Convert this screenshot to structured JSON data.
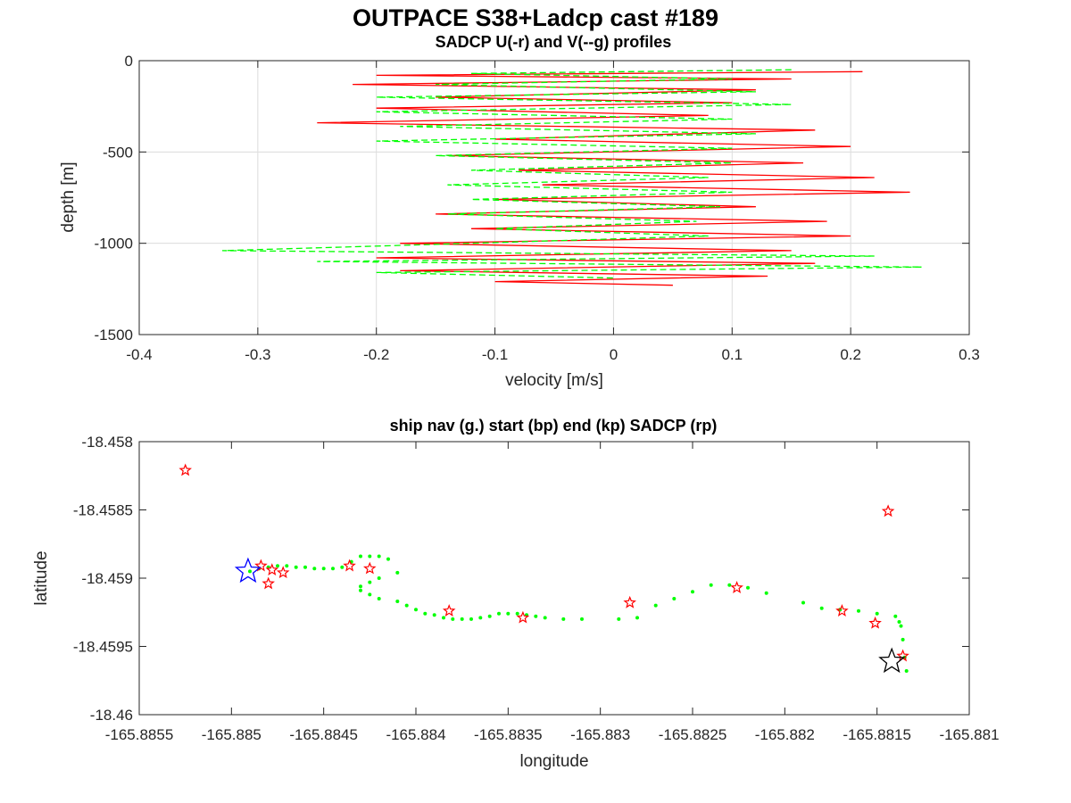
{
  "figure": {
    "title": "OUTPACE S38+Ladcp cast #189"
  },
  "chart_data": [
    {
      "type": "line",
      "title": "SADCP U(-r) and V(--g) profiles",
      "xlabel": "velocity [m/s]",
      "ylabel": "depth [m]",
      "xlim": [
        -0.4,
        0.3
      ],
      "ylim": [
        -1500,
        0
      ],
      "xticks": [
        -0.4,
        -0.3,
        -0.2,
        -0.1,
        0,
        0.1,
        0.2,
        0.3
      ],
      "xtick_labels": [
        "-0.4",
        "-0.3",
        "-0.2",
        "-0.1",
        "0",
        "0.1",
        "0.2",
        "0.3"
      ],
      "yticks": [
        -1500,
        -1000,
        -500,
        0
      ],
      "ytick_labels": [
        "-1500",
        "-1000",
        "-500",
        "0"
      ],
      "grid": true,
      "series": [
        {
          "style": "solid",
          "color": "#ff0000",
          "depth": [
            -60,
            -80,
            -100,
            -130,
            -160,
            -200,
            -230,
            -260,
            -300,
            -340,
            -380,
            -430,
            -470,
            -520,
            -560,
            -600,
            -640,
            -680,
            -720,
            -760,
            -800,
            -840,
            -880,
            -920,
            -960,
            -1000,
            -1040,
            -1080,
            -1110,
            -1150,
            -1180,
            -1210,
            -1230
          ],
          "values": [
            0.21,
            -0.2,
            0.15,
            -0.22,
            0.12,
            -0.15,
            0.1,
            -0.2,
            0.08,
            -0.25,
            0.17,
            -0.1,
            0.2,
            -0.14,
            0.16,
            -0.08,
            0.22,
            -0.06,
            0.25,
            -0.1,
            0.12,
            -0.15,
            0.18,
            -0.12,
            0.2,
            -0.18,
            0.15,
            -0.2,
            0.17,
            -0.18,
            0.13,
            -0.1,
            0.05
          ]
        },
        {
          "style": "dashed",
          "color": "#00ff00",
          "depth": [
            -50,
            -70,
            -100,
            -130,
            -170,
            -200,
            -240,
            -280,
            -320,
            -360,
            -400,
            -440,
            -480,
            -520,
            -560,
            -600,
            -640,
            -680,
            -720,
            -760,
            -800,
            -840,
            -880,
            -920,
            -960,
            -1000,
            -1040,
            -1070,
            -1100,
            -1130,
            -1160,
            -1190
          ],
          "values": [
            0.15,
            -0.12,
            0.1,
            -0.15,
            0.12,
            -0.2,
            0.15,
            -0.2,
            0.1,
            -0.18,
            0.12,
            -0.2,
            0.1,
            -0.15,
            0.1,
            -0.12,
            0.08,
            -0.14,
            0.1,
            -0.12,
            0.09,
            -0.14,
            0.07,
            -0.1,
            0.08,
            -0.12,
            -0.33,
            0.22,
            -0.25,
            0.26,
            -0.2,
            0.0
          ]
        }
      ]
    },
    {
      "type": "scatter",
      "title": "ship nav (g.) start (bp) end (kp) SADCP (rp)",
      "xlabel": "longitude",
      "ylabel": "latitude",
      "xlim": [
        -165.8855,
        -165.881
      ],
      "ylim": [
        -18.46,
        -18.458
      ],
      "xticks": [
        -165.8855,
        -165.885,
        -165.8845,
        -165.884,
        -165.8835,
        -165.883,
        -165.8825,
        -165.882,
        -165.8815,
        -165.881
      ],
      "xtick_labels": [
        "-165.8855",
        "-165.885",
        "-165.8845",
        "-165.884",
        "-165.8835",
        "-165.883",
        "-165.8825",
        "-165.882",
        "-165.8815",
        "-165.881"
      ],
      "yticks": [
        -18.46,
        -18.4595,
        -18.459,
        -18.4585,
        -18.458
      ],
      "ytick_labels": [
        "-18.46",
        "-18.4595",
        "-18.459",
        "-18.4585",
        "-18.458"
      ],
      "grid": false,
      "ship_nav": {
        "color": "#00ff00",
        "lon": [
          -165.8849,
          -165.88485,
          -165.8848,
          -165.88475,
          -165.8847,
          -165.88465,
          -165.8846,
          -165.88455,
          -165.8845,
          -165.88445,
          -165.8844,
          -165.88435,
          -165.8843,
          -165.88425,
          -165.8842,
          -165.88415,
          -165.8841,
          -165.8842,
          -165.88425,
          -165.8843,
          -165.8843,
          -165.88425,
          -165.8842,
          -165.8841,
          -165.88405,
          -165.884,
          -165.88395,
          -165.8839,
          -165.88385,
          -165.8838,
          -165.88375,
          -165.8837,
          -165.88365,
          -165.8836,
          -165.88355,
          -165.8835,
          -165.88345,
          -165.8834,
          -165.88335,
          -165.8833,
          -165.8832,
          -165.8831,
          -165.8829,
          -165.8828,
          -165.8827,
          -165.8826,
          -165.8825,
          -165.8824,
          -165.8823,
          -165.8822,
          -165.8821,
          -165.8819,
          -165.8818,
          -165.8817,
          -165.8816,
          -165.8815,
          -165.8814,
          -165.88138,
          -165.88137,
          -165.88136,
          -165.88135,
          -165.88134
        ],
        "lat": [
          -18.45895,
          -18.45893,
          -18.45892,
          -18.45891,
          -18.45891,
          -18.45892,
          -18.45892,
          -18.45893,
          -18.45893,
          -18.45893,
          -18.45892,
          -18.45888,
          -18.45884,
          -18.45884,
          -18.45884,
          -18.45886,
          -18.45896,
          -18.459,
          -18.45903,
          -18.45906,
          -18.45909,
          -18.45912,
          -18.45915,
          -18.45917,
          -18.4592,
          -18.45923,
          -18.45926,
          -18.45927,
          -18.45929,
          -18.4593,
          -18.4593,
          -18.4593,
          -18.45929,
          -18.45928,
          -18.45926,
          -18.45926,
          -18.45926,
          -18.45927,
          -18.45928,
          -18.45929,
          -18.4593,
          -18.4593,
          -18.4593,
          -18.45929,
          -18.4592,
          -18.45915,
          -18.4591,
          -18.45905,
          -18.45905,
          -18.45907,
          -18.45911,
          -18.45918,
          -18.45922,
          -18.45923,
          -18.45924,
          -18.45926,
          -18.45928,
          -18.45932,
          -18.45935,
          -18.45945,
          -18.45958,
          -18.45968
        ]
      },
      "start": {
        "color": "#0000ff",
        "lon": -165.88491,
        "lat": -18.45895
      },
      "end": {
        "color": "#000000",
        "lon": -165.88142,
        "lat": -18.45961
      },
      "sadcp": {
        "color": "#ff0000",
        "lon": [
          -165.88525,
          -165.88484,
          -165.88478,
          -165.88472,
          -165.8848,
          -165.88436,
          -165.88425,
          -165.88382,
          -165.88342,
          -165.88284,
          -165.88226,
          -165.88169,
          -165.88144,
          -165.88136,
          -165.88151
        ],
        "lat": [
          -18.45821,
          -18.45891,
          -18.45894,
          -18.45896,
          -18.45904,
          -18.45891,
          -18.45893,
          -18.45924,
          -18.45929,
          -18.45918,
          -18.45907,
          -18.45924,
          -18.45851,
          -18.45957,
          -18.45933
        ]
      }
    }
  ]
}
